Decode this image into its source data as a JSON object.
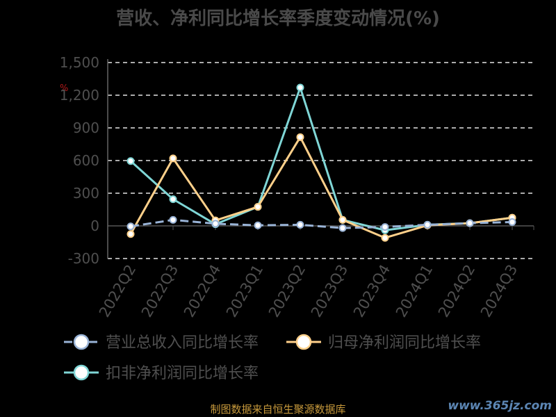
{
  "chart_data": {
    "type": "line",
    "title": "营收、净利同比增长率季度变动情况(%)",
    "unit": "%",
    "categories": [
      "2022Q2",
      "2022Q3",
      "2022Q4",
      "2023Q1",
      "2023Q2",
      "2023Q3",
      "2023Q4",
      "2024Q1",
      "2024Q2",
      "2024Q3"
    ],
    "y_ticks": [
      -300,
      0,
      300,
      600,
      900,
      1200,
      1500
    ],
    "y_tick_labels": [
      "-300",
      "0",
      "300",
      "600",
      "900",
      "1,200",
      "1,500"
    ],
    "ylim": [
      -300,
      1500
    ],
    "grid": true,
    "legend_position": "bottom",
    "series": [
      {
        "name": "营业总收入同比增长率",
        "color": "#99b3d6",
        "dashed": true,
        "values": [
          -5,
          55,
          20,
          5,
          10,
          -20,
          -10,
          10,
          25,
          35
        ]
      },
      {
        "name": "归母净利润同比增长率",
        "color": "#ffd08a",
        "dashed": false,
        "values": [
          -75,
          620,
          50,
          175,
          815,
          55,
          -110,
          5,
          25,
          75
        ]
      },
      {
        "name": "扣非净利润同比增长率",
        "color": "#7fd6d6",
        "dashed": false,
        "values": [
          595,
          245,
          15,
          175,
          1270,
          55,
          -40,
          10,
          25,
          75
        ]
      }
    ]
  },
  "footer": {
    "source": "制图数据来自恒生聚源数据库",
    "watermark": "www.365jz.com"
  }
}
